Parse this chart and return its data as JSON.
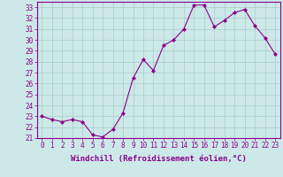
{
  "x": [
    0,
    1,
    2,
    3,
    4,
    5,
    6,
    7,
    8,
    9,
    10,
    11,
    12,
    13,
    14,
    15,
    16,
    17,
    18,
    19,
    20,
    21,
    22,
    23
  ],
  "y": [
    23.0,
    22.7,
    22.5,
    22.7,
    22.5,
    21.3,
    21.1,
    21.8,
    23.3,
    26.5,
    28.2,
    27.2,
    29.5,
    30.0,
    31.0,
    33.2,
    33.2,
    31.2,
    31.8,
    32.5,
    32.8,
    31.3,
    30.2,
    28.7
  ],
  "line_color": "#8b008b",
  "marker": "D",
  "marker_size": 2.0,
  "bg_color": "#cce8e8",
  "grid_color": "#aacccc",
  "xlabel": "Windchill (Refroidissement éolien,°C)",
  "ylim": [
    21,
    33.5
  ],
  "xlim": [
    -0.5,
    23.5
  ],
  "yticks": [
    21,
    22,
    23,
    24,
    25,
    26,
    27,
    28,
    29,
    30,
    31,
    32,
    33
  ],
  "xticks": [
    0,
    1,
    2,
    3,
    4,
    5,
    6,
    7,
    8,
    9,
    10,
    11,
    12,
    13,
    14,
    15,
    16,
    17,
    18,
    19,
    20,
    21,
    22,
    23
  ],
  "tick_fontsize": 5.5,
  "xlabel_fontsize": 6.5,
  "line_width": 0.8,
  "spine_color": "#8b008b"
}
